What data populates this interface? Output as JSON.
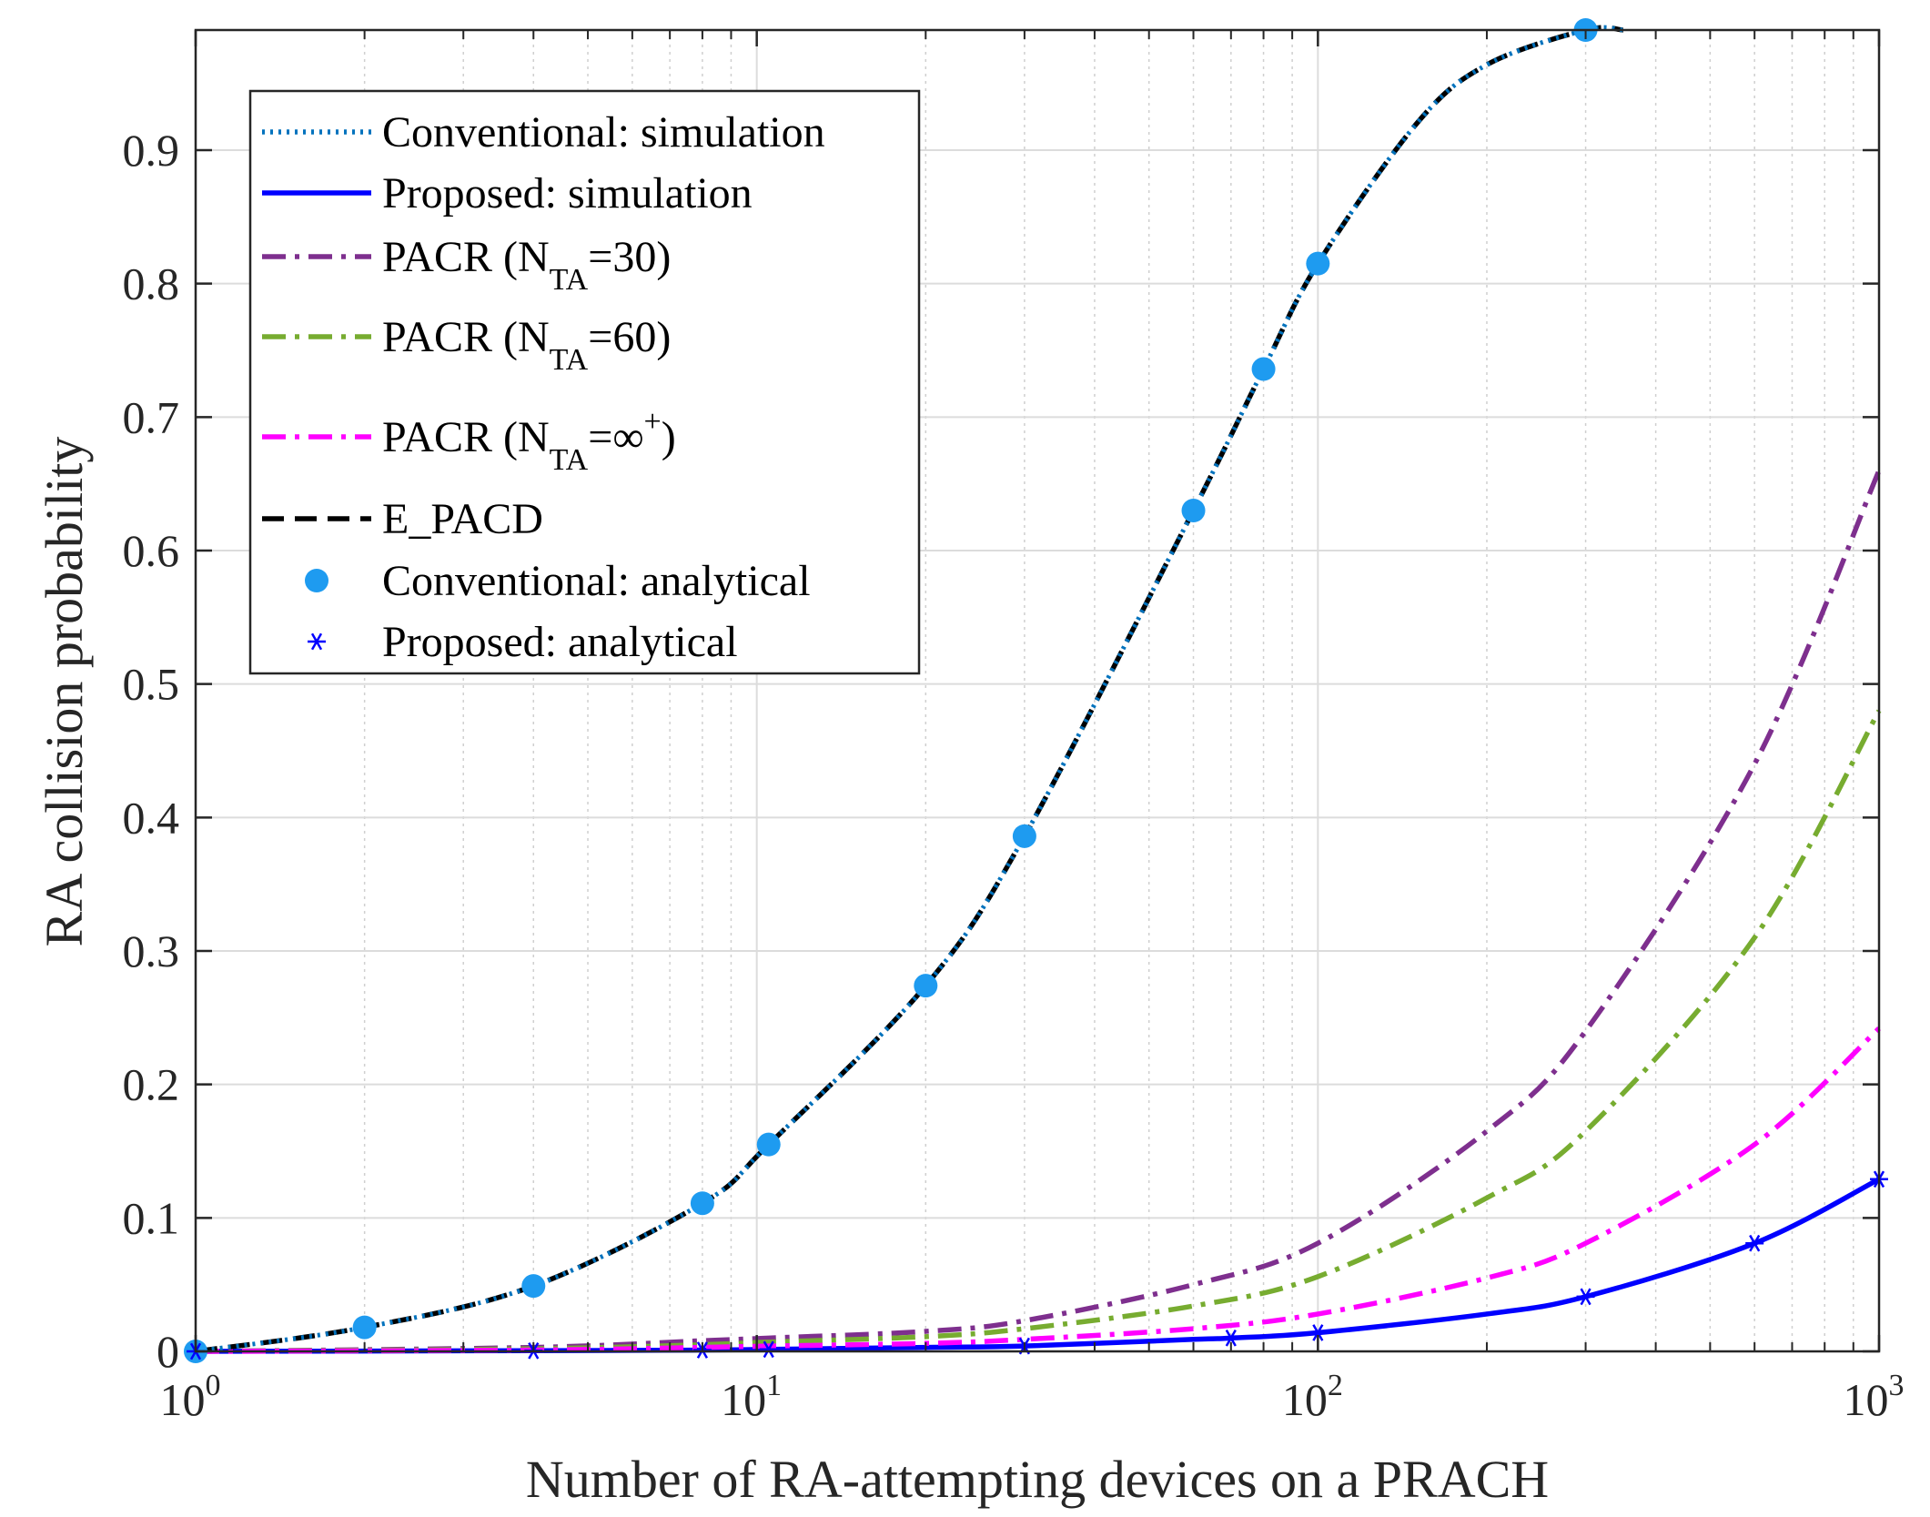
{
  "chart_data": {
    "type": "line",
    "title": "",
    "xlabel": "Number of RA-attempting devices on a PRACH",
    "ylabel": "RA collision probability",
    "xscale": "log",
    "xlim": [
      1,
      1000
    ],
    "ylim": [
      0,
      1
    ],
    "grid": true,
    "legend_position": "top-left",
    "x_ticks": [
      {
        "base": "10",
        "exp": "0",
        "value": 1
      },
      {
        "base": "10",
        "exp": "1",
        "value": 10
      },
      {
        "base": "10",
        "exp": "2",
        "value": 100
      },
      {
        "base": "10",
        "exp": "3",
        "value": 1000
      }
    ],
    "y_ticks": [
      "0",
      "0.1",
      "0.2",
      "0.3",
      "0.4",
      "0.5",
      "0.6",
      "0.7",
      "0.8",
      "0.9"
    ],
    "series": [
      {
        "name": "Conventional: simulation",
        "style": "dotted",
        "color": "#0072BD",
        "marker": "none",
        "x": [
          1,
          2,
          4,
          8,
          10.5,
          20,
          30,
          60,
          80,
          100,
          150,
          200,
          300,
          350
        ],
        "y": [
          0,
          0.018,
          0.049,
          0.111,
          0.155,
          0.274,
          0.386,
          0.63,
          0.736,
          0.815,
          0.92,
          0.964,
          0.993,
          0.998
        ]
      },
      {
        "name": "Proposed: simulation",
        "style": "solid",
        "color": "#0000FF",
        "marker": "none",
        "x": [
          1,
          4,
          8,
          10.5,
          20,
          30,
          60,
          70,
          100,
          200,
          300,
          600,
          1000
        ],
        "y": [
          0,
          0.0005,
          0.001,
          0.0015,
          0.003,
          0.004,
          0.009,
          0.01,
          0.014,
          0.028,
          0.041,
          0.081,
          0.129
        ]
      },
      {
        "name": "PACR (N",
        "sub": "TA",
        "tail": "=30)",
        "style": "dashdot",
        "color": "#7E2F8E",
        "marker": "none",
        "x": [
          1,
          4,
          8,
          10.5,
          20,
          30,
          60,
          100,
          200,
          300,
          600,
          1000
        ],
        "y": [
          0,
          0.003,
          0.008,
          0.01,
          0.015,
          0.023,
          0.05,
          0.081,
          0.165,
          0.24,
          0.44,
          0.66
        ]
      },
      {
        "name": "PACR (N",
        "sub": "TA",
        "tail": "=60)",
        "style": "dashdot",
        "color": "#77AC30",
        "marker": "none",
        "x": [
          1,
          4,
          8,
          10.5,
          20,
          30,
          60,
          100,
          200,
          300,
          600,
          1000
        ],
        "y": [
          0,
          0.002,
          0.005,
          0.007,
          0.011,
          0.017,
          0.034,
          0.056,
          0.115,
          0.165,
          0.31,
          0.48
        ]
      },
      {
        "name": "PACR (N",
        "sub": "TA",
        "tail": "=∞",
        "sup": "+",
        "tail2": ")",
        "style": "dashdot",
        "color": "#FF00FF",
        "marker": "none",
        "x": [
          1,
          4,
          8,
          10.5,
          20,
          30,
          60,
          100,
          200,
          300,
          600,
          1000
        ],
        "y": [
          0,
          0.001,
          0.003,
          0.004,
          0.006,
          0.009,
          0.017,
          0.028,
          0.055,
          0.081,
          0.155,
          0.242
        ]
      },
      {
        "name": "E_PACD",
        "style": "dashed",
        "color": "#000000",
        "marker": "none",
        "x": [
          1,
          2,
          4,
          8,
          10.5,
          20,
          30,
          60,
          80,
          100,
          150,
          200,
          300,
          350
        ],
        "y": [
          0,
          0.018,
          0.049,
          0.111,
          0.155,
          0.274,
          0.386,
          0.63,
          0.736,
          0.815,
          0.92,
          0.964,
          0.993,
          0.998
        ]
      },
      {
        "name": "Conventional: analytical",
        "style": "none",
        "color": "#1E9BF0",
        "marker": "circle",
        "x": [
          1,
          2,
          4,
          8,
          10.5,
          20,
          30,
          60,
          80,
          100,
          300
        ],
        "y": [
          0,
          0.018,
          0.049,
          0.111,
          0.155,
          0.274,
          0.386,
          0.63,
          0.736,
          0.815,
          0.993
        ]
      },
      {
        "name": "Proposed: analytical",
        "style": "none",
        "color": "#0000FF",
        "marker": "asterisk",
        "x": [
          1,
          4,
          8,
          10.5,
          30,
          70,
          100,
          300,
          600,
          1000
        ],
        "y": [
          0,
          0.0005,
          0.001,
          0.0015,
          0.004,
          0.01,
          0.014,
          0.041,
          0.081,
          0.129
        ]
      }
    ]
  }
}
